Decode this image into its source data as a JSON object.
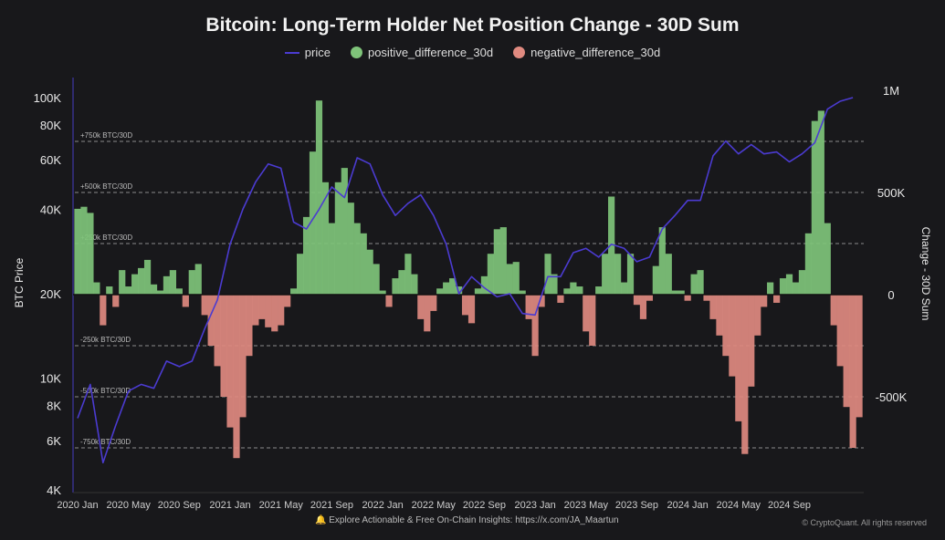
{
  "chart_data": {
    "type": "bar+line",
    "title": "Bitcoin: Long-Term Holder Net Position Change - 30D Sum",
    "legend": [
      {
        "name": "price",
        "color": "#4b3bd1",
        "marker": "line"
      },
      {
        "name": "positive_difference_30d",
        "color": "#7fc47a",
        "marker": "dot"
      },
      {
        "name": "negative_difference_30d",
        "color": "#e08a80",
        "marker": "dot"
      }
    ],
    "legend_position": "top-center",
    "ylabel_left": "BTC Price",
    "ylabel_right": "Change - 30D Sum",
    "y_left_scale": "log",
    "y_left_range": [
      4000,
      110000
    ],
    "y_left_ticks": [
      "100K",
      "80K",
      "60K",
      "40K",
      "20K",
      "10K",
      "8K",
      "6K",
      "4K"
    ],
    "y_left_tick_values": [
      100000,
      80000,
      60000,
      40000,
      20000,
      10000,
      8000,
      6000,
      4000
    ],
    "y_right_range": [
      -1000000,
      1000000
    ],
    "y_right_ticks": [
      "1M",
      "500K",
      "0",
      "-500K"
    ],
    "y_right_tick_values": [
      1000000,
      500000,
      0,
      -500000
    ],
    "x_ticks": [
      "2020 Jan",
      "2020 May",
      "2020 Sep",
      "2021 Jan",
      "2021 May",
      "2021 Sep",
      "2022 Jan",
      "2022 May",
      "2022 Sep",
      "2023 Jan",
      "2023 May",
      "2023 Sep",
      "2024 Jan",
      "2024 May",
      "2024 Sep"
    ],
    "x_tick_dates": [
      "2020-01-01",
      "2020-05-01",
      "2020-09-01",
      "2021-01-01",
      "2021-05-01",
      "2021-09-01",
      "2022-01-01",
      "2022-05-01",
      "2022-09-01",
      "2023-01-01",
      "2023-05-01",
      "2023-09-01",
      "2024-01-01",
      "2024-05-01",
      "2024-09-01"
    ],
    "reference_lines": [
      {
        "label": "+750k BTC/30D",
        "value": 750000
      },
      {
        "label": "+500k BTC/30D",
        "value": 500000
      },
      {
        "label": "+250k BTC/30D",
        "value": 250000
      },
      {
        "label": "-250k BTC/30D",
        "value": -250000
      },
      {
        "label": "-500k BTC/30D",
        "value": -500000
      },
      {
        "label": "-750k BTC/30D",
        "value": -750000
      }
    ],
    "net_change": {
      "unit": "BTC (thousands)",
      "dates": [
        "2020-01-01",
        "2020-01-16",
        "2020-02-01",
        "2020-02-16",
        "2020-03-01",
        "2020-03-16",
        "2020-04-01",
        "2020-04-16",
        "2020-05-01",
        "2020-05-16",
        "2020-06-01",
        "2020-06-16",
        "2020-07-01",
        "2020-07-16",
        "2020-08-01",
        "2020-08-16",
        "2020-09-01",
        "2020-09-16",
        "2020-10-01",
        "2020-10-16",
        "2020-11-01",
        "2020-11-16",
        "2020-12-01",
        "2020-12-16",
        "2021-01-01",
        "2021-01-16",
        "2021-02-01",
        "2021-02-16",
        "2021-03-01",
        "2021-03-16",
        "2021-04-01",
        "2021-04-16",
        "2021-05-01",
        "2021-05-16",
        "2021-06-01",
        "2021-06-16",
        "2021-07-01",
        "2021-07-16",
        "2021-08-01",
        "2021-08-16",
        "2021-09-01",
        "2021-09-16",
        "2021-10-01",
        "2021-10-16",
        "2021-11-01",
        "2021-11-16",
        "2021-12-01",
        "2021-12-16",
        "2022-01-01",
        "2022-01-16",
        "2022-02-01",
        "2022-02-16",
        "2022-03-01",
        "2022-03-16",
        "2022-04-01",
        "2022-04-16",
        "2022-05-01",
        "2022-05-16",
        "2022-06-01",
        "2022-06-16",
        "2022-07-01",
        "2022-07-16",
        "2022-08-01",
        "2022-08-16",
        "2022-09-01",
        "2022-09-16",
        "2022-10-01",
        "2022-10-16",
        "2022-11-01",
        "2022-11-16",
        "2022-12-01",
        "2022-12-16",
        "2023-01-01",
        "2023-01-16",
        "2023-02-01",
        "2023-02-16",
        "2023-03-01",
        "2023-03-16",
        "2023-04-01",
        "2023-04-16",
        "2023-05-01",
        "2023-05-16",
        "2023-06-01",
        "2023-06-16",
        "2023-07-01",
        "2023-07-16",
        "2023-08-01",
        "2023-08-16",
        "2023-09-01",
        "2023-09-16",
        "2023-10-01",
        "2023-10-16",
        "2023-11-01",
        "2023-11-16",
        "2023-12-01",
        "2023-12-16",
        "2024-01-01",
        "2024-01-16",
        "2024-02-01",
        "2024-02-16",
        "2024-03-01",
        "2024-03-16",
        "2024-04-01",
        "2024-04-16",
        "2024-05-01",
        "2024-05-16",
        "2024-06-01",
        "2024-06-16",
        "2024-07-01",
        "2024-07-16",
        "2024-08-01",
        "2024-08-16",
        "2024-09-01",
        "2024-09-16",
        "2024-10-01",
        "2024-10-16",
        "2024-11-01",
        "2024-11-16",
        "2024-12-01",
        "2024-12-16",
        "2025-01-01",
        "2025-01-16",
        "2025-02-01",
        "2025-02-16"
      ],
      "values": [
        420,
        430,
        400,
        60,
        -150,
        40,
        -60,
        120,
        40,
        100,
        130,
        170,
        50,
        20,
        90,
        120,
        30,
        -60,
        120,
        150,
        -100,
        -250,
        -350,
        -500,
        -650,
        -800,
        -600,
        -300,
        -150,
        -120,
        -160,
        -180,
        -150,
        -60,
        30,
        200,
        380,
        700,
        950,
        550,
        350,
        550,
        620,
        450,
        350,
        300,
        220,
        150,
        20,
        -60,
        80,
        120,
        200,
        100,
        -120,
        -180,
        -80,
        30,
        60,
        80,
        40,
        -100,
        -140,
        30,
        90,
        200,
        320,
        330,
        150,
        160,
        20,
        -120,
        -300,
        -60,
        200,
        100,
        -40,
        30,
        60,
        40,
        -180,
        -250,
        40,
        200,
        480,
        200,
        60,
        200,
        -50,
        -120,
        -30,
        140,
        330,
        200,
        20,
        20,
        -30,
        100,
        120,
        -30,
        -120,
        -200,
        -300,
        -400,
        -620,
        -780,
        -450,
        -200,
        -60,
        60,
        -40,
        80,
        100,
        60,
        120,
        300,
        850,
        900,
        350,
        -150,
        -350,
        -550,
        -750,
        -600
      ]
    },
    "price": {
      "unit": "USD",
      "dates": [
        "2020-01",
        "2020-02",
        "2020-03",
        "2020-04",
        "2020-05",
        "2020-06",
        "2020-07",
        "2020-08",
        "2020-09",
        "2020-10",
        "2020-11",
        "2020-12",
        "2021-01",
        "2021-02",
        "2021-03",
        "2021-04",
        "2021-05",
        "2021-06",
        "2021-07",
        "2021-08",
        "2021-09",
        "2021-10",
        "2021-11",
        "2021-12",
        "2022-01",
        "2022-02",
        "2022-03",
        "2022-04",
        "2022-05",
        "2022-06",
        "2022-07",
        "2022-08",
        "2022-09",
        "2022-10",
        "2022-11",
        "2022-12",
        "2023-01",
        "2023-02",
        "2023-03",
        "2023-04",
        "2023-05",
        "2023-06",
        "2023-07",
        "2023-08",
        "2023-09",
        "2023-10",
        "2023-11",
        "2023-12",
        "2024-01",
        "2024-02",
        "2024-03",
        "2024-04",
        "2024-05",
        "2024-06",
        "2024-07",
        "2024-08",
        "2024-09",
        "2024-10",
        "2024-11",
        "2024-12",
        "2025-01",
        "2025-02"
      ],
      "values": [
        7200,
        9500,
        5000,
        6800,
        9000,
        9500,
        9200,
        11500,
        11000,
        11500,
        15000,
        19000,
        30000,
        40000,
        50000,
        58000,
        56000,
        36000,
        34000,
        40000,
        48000,
        44000,
        61000,
        58000,
        45000,
        38000,
        42000,
        45000,
        38000,
        30000,
        20000,
        23000,
        21000,
        19500,
        20000,
        17000,
        16800,
        23000,
        23000,
        28000,
        29000,
        27000,
        30000,
        29000,
        26000,
        27000,
        34000,
        38000,
        43000,
        43000,
        62000,
        70000,
        63000,
        68000,
        63000,
        64000,
        59000,
        63000,
        69000,
        91000,
        97000,
        100000
      ]
    },
    "grid": false
  },
  "footer": {
    "text": "Explore Actionable & Free On-Chain Insights: https://x.com/JA_Maartun",
    "copyright": "© CryptoQuant. All rights reserved",
    "icon": "bell-icon"
  },
  "colors": {
    "background": "#18181b",
    "positive": "#7fc47a",
    "negative": "#e08a80",
    "price": "#4b3bd1"
  }
}
